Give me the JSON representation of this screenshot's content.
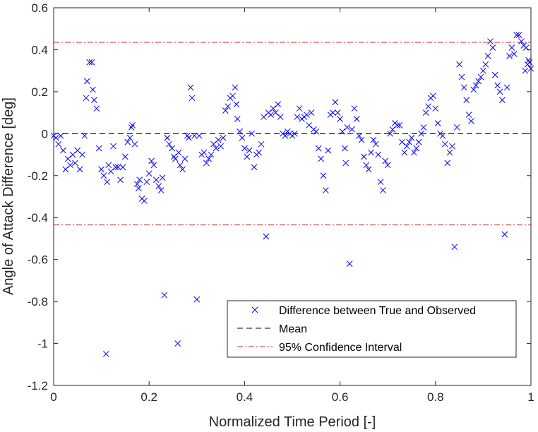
{
  "chart_data": {
    "type": "scatter",
    "xlabel": "Normalized Time Period [-]",
    "ylabel": "Angle of Attack Difference [deg]",
    "xlim": [
      0,
      1
    ],
    "ylim": [
      -1.2,
      0.6
    ],
    "xticks": [
      "0",
      "0.2",
      "0.4",
      "0.6",
      "0.8",
      "1"
    ],
    "yticks": [
      "-1.2",
      "-1",
      "-0.8",
      "-0.6",
      "-0.4",
      "-0.2",
      "0",
      "0.2",
      "0.4",
      "0.6"
    ],
    "grid": false,
    "legend_position": "bottom-right",
    "series": [
      {
        "name": "Difference between True and Observed",
        "marker": "x",
        "color": "#0000ff",
        "points": [
          [
            0.0,
            -0.01
          ],
          [
            0.005,
            -0.02
          ],
          [
            0.01,
            -0.05
          ],
          [
            0.015,
            -0.01
          ],
          [
            0.02,
            -0.08
          ],
          [
            0.025,
            -0.17
          ],
          [
            0.03,
            -0.12
          ],
          [
            0.035,
            -0.15
          ],
          [
            0.04,
            -0.1
          ],
          [
            0.045,
            -0.14
          ],
          [
            0.05,
            -0.08
          ],
          [
            0.055,
            -0.17
          ],
          [
            0.06,
            -0.1
          ],
          [
            0.065,
            -0.01
          ],
          [
            0.068,
            0.17
          ],
          [
            0.07,
            0.25
          ],
          [
            0.075,
            0.34
          ],
          [
            0.08,
            0.34
          ],
          [
            0.082,
            0.21
          ],
          [
            0.085,
            0.16
          ],
          [
            0.09,
            0.12
          ],
          [
            0.095,
            -0.07
          ],
          [
            0.1,
            -0.17
          ],
          [
            0.105,
            -0.2
          ],
          [
            0.11,
            -1.05
          ],
          [
            0.112,
            -0.23
          ],
          [
            0.115,
            -0.15
          ],
          [
            0.12,
            -0.18
          ],
          [
            0.125,
            -0.06
          ],
          [
            0.13,
            -0.16
          ],
          [
            0.135,
            -0.16
          ],
          [
            0.14,
            -0.22
          ],
          [
            0.145,
            -0.16
          ],
          [
            0.15,
            -0.11
          ],
          [
            0.155,
            -0.04
          ],
          [
            0.16,
            -0.02
          ],
          [
            0.163,
            0.03
          ],
          [
            0.165,
            0.04
          ],
          [
            0.17,
            -0.05
          ],
          [
            0.175,
            -0.24
          ],
          [
            0.178,
            -0.26
          ],
          [
            0.18,
            -0.22
          ],
          [
            0.185,
            -0.31
          ],
          [
            0.19,
            -0.32
          ],
          [
            0.195,
            -0.23
          ],
          [
            0.2,
            -0.19
          ],
          [
            0.205,
            -0.13
          ],
          [
            0.21,
            -0.15
          ],
          [
            0.215,
            -0.22
          ],
          [
            0.22,
            -0.25
          ],
          [
            0.225,
            -0.27
          ],
          [
            0.228,
            -0.21
          ],
          [
            0.232,
            -0.77
          ],
          [
            0.238,
            -0.02
          ],
          [
            0.242,
            -0.05
          ],
          [
            0.248,
            -0.07
          ],
          [
            0.252,
            -0.11
          ],
          [
            0.255,
            -0.12
          ],
          [
            0.26,
            -1.0
          ],
          [
            0.262,
            -0.09
          ],
          [
            0.265,
            -0.15
          ],
          [
            0.27,
            -0.17
          ],
          [
            0.275,
            -0.12
          ],
          [
            0.28,
            -0.01
          ],
          [
            0.283,
            -0.02
          ],
          [
            0.287,
            0.22
          ],
          [
            0.29,
            0.17
          ],
          [
            0.295,
            -0.01
          ],
          [
            0.3,
            -0.79
          ],
          [
            0.305,
            -0.01
          ],
          [
            0.31,
            -0.1
          ],
          [
            0.315,
            -0.09
          ],
          [
            0.32,
            -0.14
          ],
          [
            0.325,
            -0.12
          ],
          [
            0.33,
            -0.1
          ],
          [
            0.335,
            -0.05
          ],
          [
            0.34,
            -0.07
          ],
          [
            0.345,
            -0.03
          ],
          [
            0.35,
            -0.06
          ],
          [
            0.355,
            -0.02
          ],
          [
            0.36,
            0.11
          ],
          [
            0.365,
            0.13
          ],
          [
            0.37,
            0.17
          ],
          [
            0.375,
            0.18
          ],
          [
            0.38,
            0.22
          ],
          [
            0.383,
            0.14
          ],
          [
            0.385,
            0.07
          ],
          [
            0.39,
            0.01
          ],
          [
            0.395,
            -0.02
          ],
          [
            0.4,
            -0.07
          ],
          [
            0.405,
            -0.11
          ],
          [
            0.41,
            -0.08
          ],
          [
            0.415,
            0.0
          ],
          [
            0.42,
            -0.16
          ],
          [
            0.425,
            -0.1
          ],
          [
            0.43,
            -0.09
          ],
          [
            0.435,
            -0.05
          ],
          [
            0.44,
            0.08
          ],
          [
            0.445,
            -0.49
          ],
          [
            0.45,
            0.1
          ],
          [
            0.455,
            0.09
          ],
          [
            0.46,
            0.12
          ],
          [
            0.465,
            0.1
          ],
          [
            0.47,
            0.14
          ],
          [
            0.475,
            0.08
          ],
          [
            0.48,
            0.0
          ],
          [
            0.485,
            -0.01
          ],
          [
            0.49,
            0.01
          ],
          [
            0.495,
            0.0
          ],
          [
            0.5,
            -0.01
          ],
          [
            0.505,
            0.0
          ],
          [
            0.51,
            0.08
          ],
          [
            0.515,
            0.12
          ],
          [
            0.52,
            0.07
          ],
          [
            0.525,
            0.08
          ],
          [
            0.53,
            0.09
          ],
          [
            0.535,
            0.04
          ],
          [
            0.54,
            0.1
          ],
          [
            0.545,
            0.02
          ],
          [
            0.55,
            0.01
          ],
          [
            0.555,
            -0.07
          ],
          [
            0.56,
            -0.12
          ],
          [
            0.565,
            -0.2
          ],
          [
            0.57,
            -0.27
          ],
          [
            0.575,
            -0.08
          ],
          [
            0.58,
            0.09
          ],
          [
            0.585,
            0.1
          ],
          [
            0.59,
            0.15
          ],
          [
            0.595,
            0.1
          ],
          [
            0.6,
            0.07
          ],
          [
            0.605,
            0.01
          ],
          [
            0.61,
            -0.07
          ],
          [
            0.612,
            -0.14
          ],
          [
            0.615,
            0.03
          ],
          [
            0.62,
            -0.62
          ],
          [
            0.625,
            0.02
          ],
          [
            0.63,
            0.12
          ],
          [
            0.635,
            0.07
          ],
          [
            0.64,
            -0.01
          ],
          [
            0.645,
            -0.03
          ],
          [
            0.65,
            -0.11
          ],
          [
            0.655,
            -0.15
          ],
          [
            0.66,
            -0.17
          ],
          [
            0.665,
            -0.09
          ],
          [
            0.67,
            -0.03
          ],
          [
            0.675,
            -0.05
          ],
          [
            0.68,
            -0.1
          ],
          [
            0.685,
            -0.23
          ],
          [
            0.69,
            -0.27
          ],
          [
            0.695,
            -0.13
          ],
          [
            0.7,
            -0.15
          ],
          [
            0.705,
            0.0
          ],
          [
            0.71,
            0.02
          ],
          [
            0.715,
            0.05
          ],
          [
            0.72,
            0.04
          ],
          [
            0.725,
            0.04
          ],
          [
            0.73,
            -0.04
          ],
          [
            0.735,
            -0.09
          ],
          [
            0.74,
            -0.06
          ],
          [
            0.745,
            -0.04
          ],
          [
            0.75,
            -0.02
          ],
          [
            0.755,
            -0.09
          ],
          [
            0.76,
            -0.07
          ],
          [
            0.765,
            -0.04
          ],
          [
            0.77,
            0.0
          ],
          [
            0.775,
            0.03
          ],
          [
            0.78,
            0.1
          ],
          [
            0.785,
            0.13
          ],
          [
            0.79,
            0.17
          ],
          [
            0.795,
            0.18
          ],
          [
            0.8,
            0.12
          ],
          [
            0.805,
            0.05
          ],
          [
            0.81,
            0.0
          ],
          [
            0.815,
            -0.01
          ],
          [
            0.82,
            -0.05
          ],
          [
            0.825,
            -0.14
          ],
          [
            0.83,
            -0.09
          ],
          [
            0.835,
            -0.06
          ],
          [
            0.84,
            -0.54
          ],
          [
            0.845,
            0.03
          ],
          [
            0.85,
            0.33
          ],
          [
            0.855,
            0.27
          ],
          [
            0.86,
            0.22
          ],
          [
            0.865,
            0.16
          ],
          [
            0.87,
            0.09
          ],
          [
            0.875,
            0.06
          ],
          [
            0.88,
            0.21
          ],
          [
            0.885,
            0.23
          ],
          [
            0.89,
            0.25
          ],
          [
            0.895,
            0.27
          ],
          [
            0.9,
            0.3
          ],
          [
            0.905,
            0.33
          ],
          [
            0.91,
            0.37
          ],
          [
            0.915,
            0.44
          ],
          [
            0.92,
            0.41
          ],
          [
            0.925,
            0.28
          ],
          [
            0.93,
            0.23
          ],
          [
            0.935,
            0.2
          ],
          [
            0.94,
            0.16
          ],
          [
            0.945,
            -0.48
          ],
          [
            0.95,
            0.22
          ],
          [
            0.955,
            0.37
          ],
          [
            0.96,
            0.41
          ],
          [
            0.965,
            0.38
          ],
          [
            0.97,
            0.47
          ],
          [
            0.975,
            0.47
          ],
          [
            0.98,
            0.44
          ],
          [
            0.985,
            0.42
          ],
          [
            0.99,
            0.41
          ],
          [
            0.995,
            0.35
          ],
          [
            1.0,
            0.31
          ],
          [
            0.997,
            0.34
          ],
          [
            0.993,
            0.33
          ],
          [
            0.988,
            0.3
          ]
        ]
      },
      {
        "name": "Mean",
        "type": "hline",
        "value": 0,
        "color": "#000000",
        "dash": "dashed"
      },
      {
        "name": "95% Confidence Interval",
        "type": "hline",
        "values": [
          0.435,
          -0.435
        ],
        "color": "#d62728",
        "dash": "dashdot"
      }
    ]
  }
}
